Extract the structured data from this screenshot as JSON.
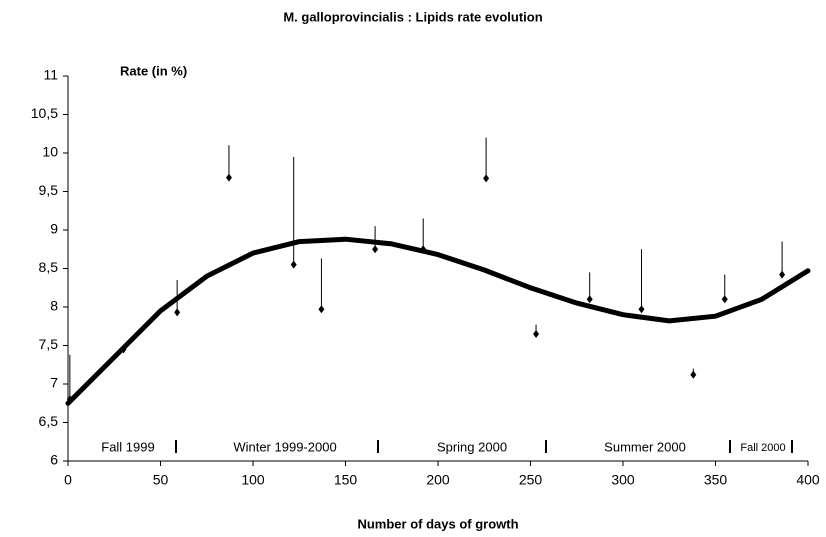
{
  "chart_data": {
    "type": "scatter",
    "title": "M. galloprovincialis : Lipids rate evolution",
    "xlabel": "Number of days of growth",
    "ylabel": "Rate (in %)",
    "x": [
      1,
      30,
      59,
      87,
      122,
      137,
      166,
      192,
      226,
      253,
      282,
      310,
      338,
      355,
      386
    ],
    "values": [
      6.8,
      7.45,
      7.93,
      9.68,
      8.55,
      7.97,
      8.75,
      8.75,
      9.67,
      7.65,
      8.1,
      7.97,
      7.12,
      8.1,
      8.42
    ],
    "errors": [
      0.58,
      0.05,
      0.42,
      0.42,
      1.4,
      0.66,
      0.3,
      0.4,
      0.53,
      0.12,
      0.35,
      0.78,
      0.08,
      0.32,
      0.43
    ],
    "color": "#000000",
    "trend": {
      "x": [
        0,
        25,
        50,
        75,
        100,
        125,
        150,
        175,
        200,
        225,
        250,
        275,
        300,
        325,
        350,
        375,
        400
      ],
      "values": [
        6.75,
        7.35,
        7.95,
        8.4,
        8.7,
        8.85,
        8.88,
        8.82,
        8.68,
        8.48,
        8.25,
        8.05,
        7.9,
        7.82,
        7.88,
        8.1,
        8.47
      ]
    },
    "annotations": [
      "Fall 1999",
      "Winter 1999-2000",
      "Spring 2000",
      "Summer 2000",
      "Fall 2000"
    ],
    "xlim": [
      0,
      400
    ],
    "xticks": [
      0,
      50,
      100,
      150,
      200,
      250,
      300,
      350,
      400
    ],
    "ylim": [
      6,
      11
    ],
    "yticks": [
      6,
      {
        "value": 6.5,
        "label": "6,5"
      },
      7,
      {
        "value": 7.5,
        "label": "7,5"
      },
      8,
      {
        "value": 8.5,
        "label": "8,5"
      },
      9,
      {
        "value": 9.5,
        "label": "9,5"
      },
      10,
      {
        "value": 10.5,
        "label": "10,5"
      },
      11
    ],
    "grid": false
  }
}
